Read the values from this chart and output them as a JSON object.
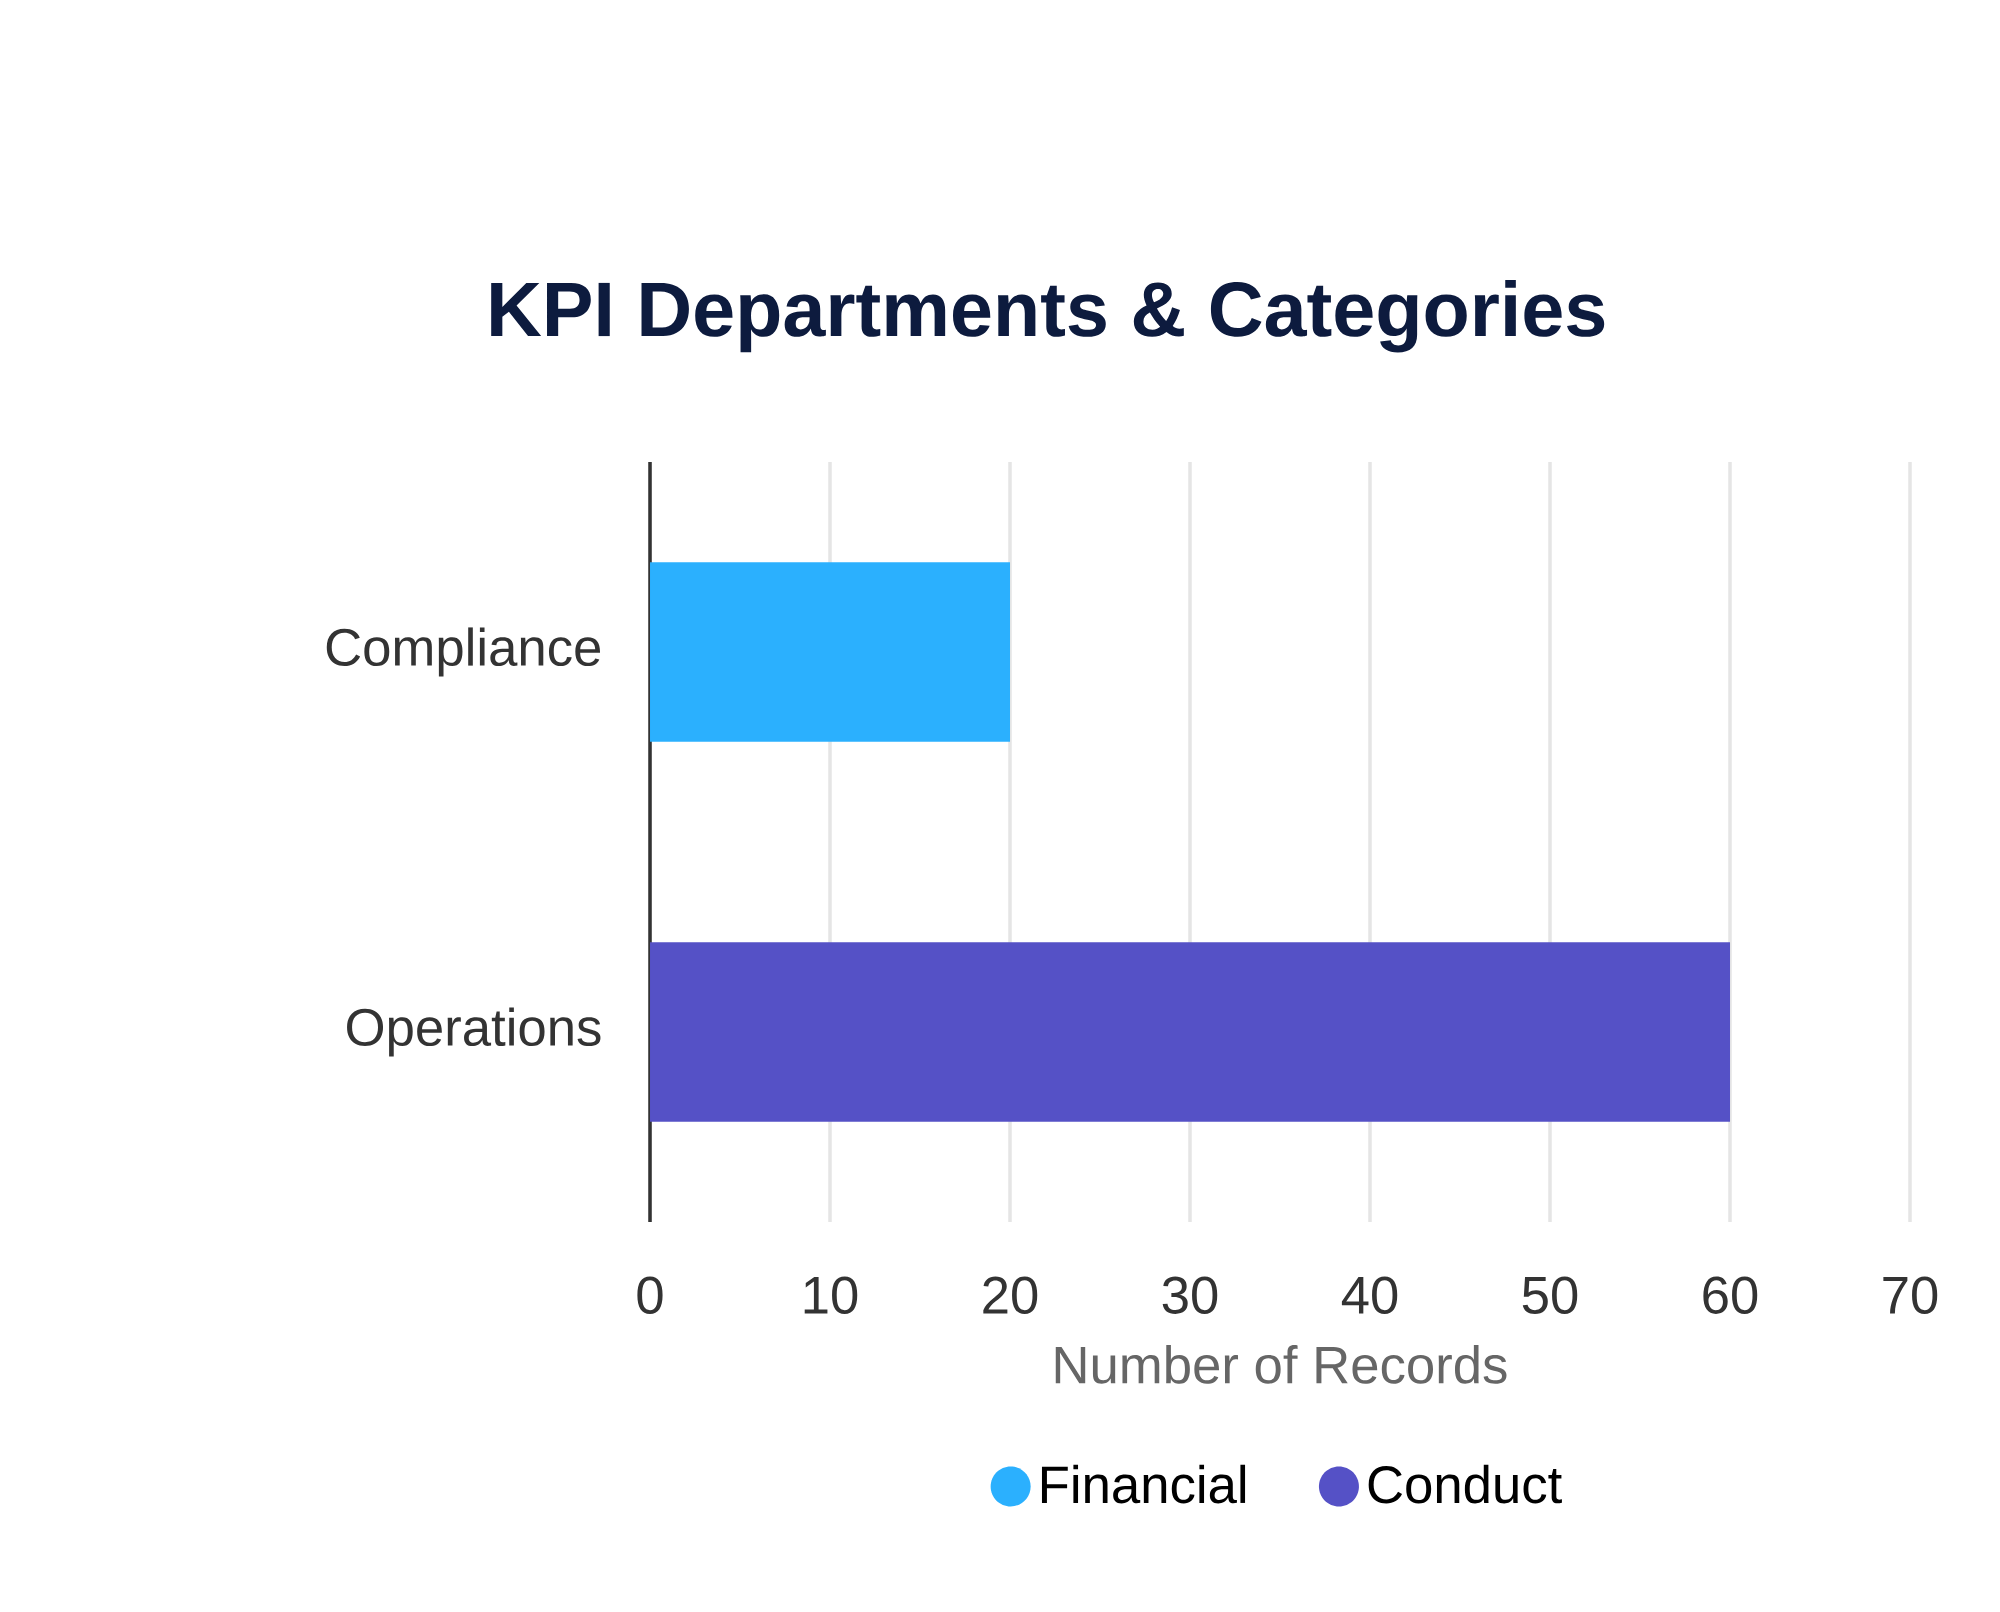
{
  "chart_data": {
    "type": "bar",
    "orientation": "horizontal",
    "stacked": true,
    "title": "KPI Departments & Categories",
    "xlabel": "Number of Records",
    "categories": [
      "Compliance",
      "Operations"
    ],
    "series": [
      {
        "name": "Financial",
        "color": "#2bb0fe",
        "values": [
          20,
          null
        ]
      },
      {
        "name": "Conduct",
        "color": "#5551c6",
        "values": [
          null,
          60
        ]
      }
    ],
    "xlim": [
      0,
      70
    ],
    "xticks": [
      0,
      10,
      20,
      30,
      40,
      50,
      60,
      70
    ],
    "grid": "x",
    "legend": "bottom"
  }
}
